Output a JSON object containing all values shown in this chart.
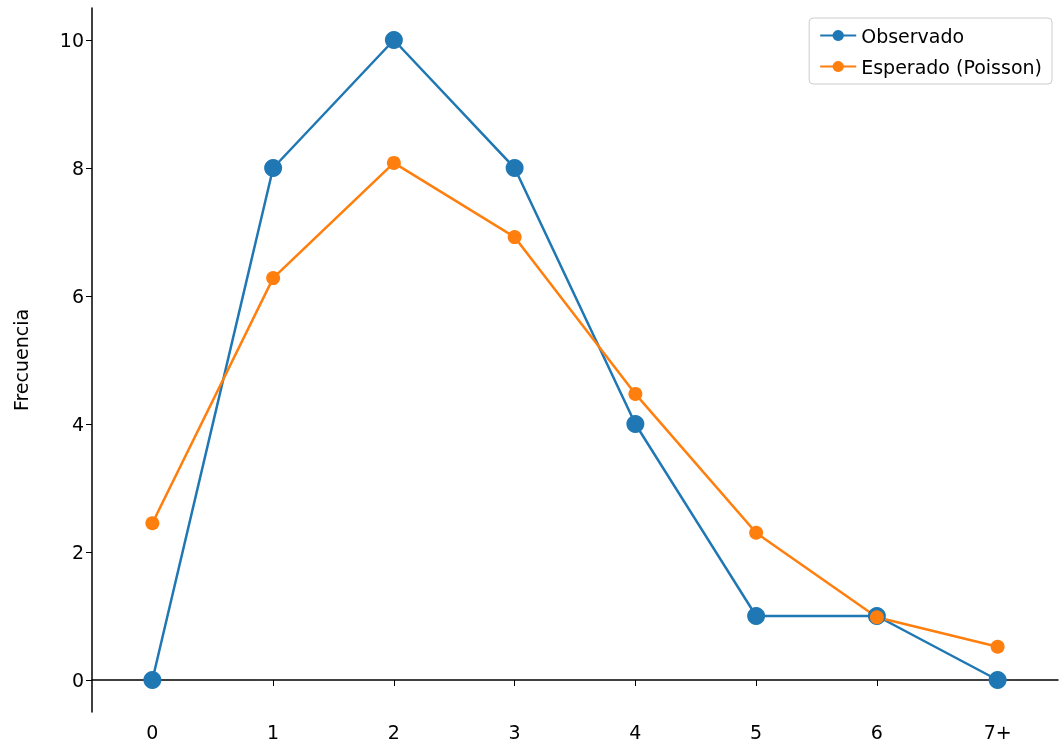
{
  "chart_data": {
    "type": "line",
    "ylabel": "Frecuencia",
    "categories": [
      "0",
      "1",
      "2",
      "3",
      "4",
      "5",
      "6",
      "7+"
    ],
    "series": [
      {
        "name": "Observado",
        "color": "#1f77b4",
        "values": [
          0,
          8,
          10,
          8,
          4,
          1,
          1,
          0
        ]
      },
      {
        "name": "Esperado (Poisson)",
        "color": "#ff7f0e",
        "values": [
          2.45,
          6.28,
          8.08,
          6.92,
          4.47,
          2.3,
          0.98,
          0.52
        ]
      }
    ],
    "ylim": [
      -0.5,
      10.5
    ],
    "yticks": [
      0,
      2,
      4,
      6,
      8,
      10
    ],
    "legend": "top right",
    "marker": "circle",
    "line_style": "solid",
    "grid": false
  }
}
